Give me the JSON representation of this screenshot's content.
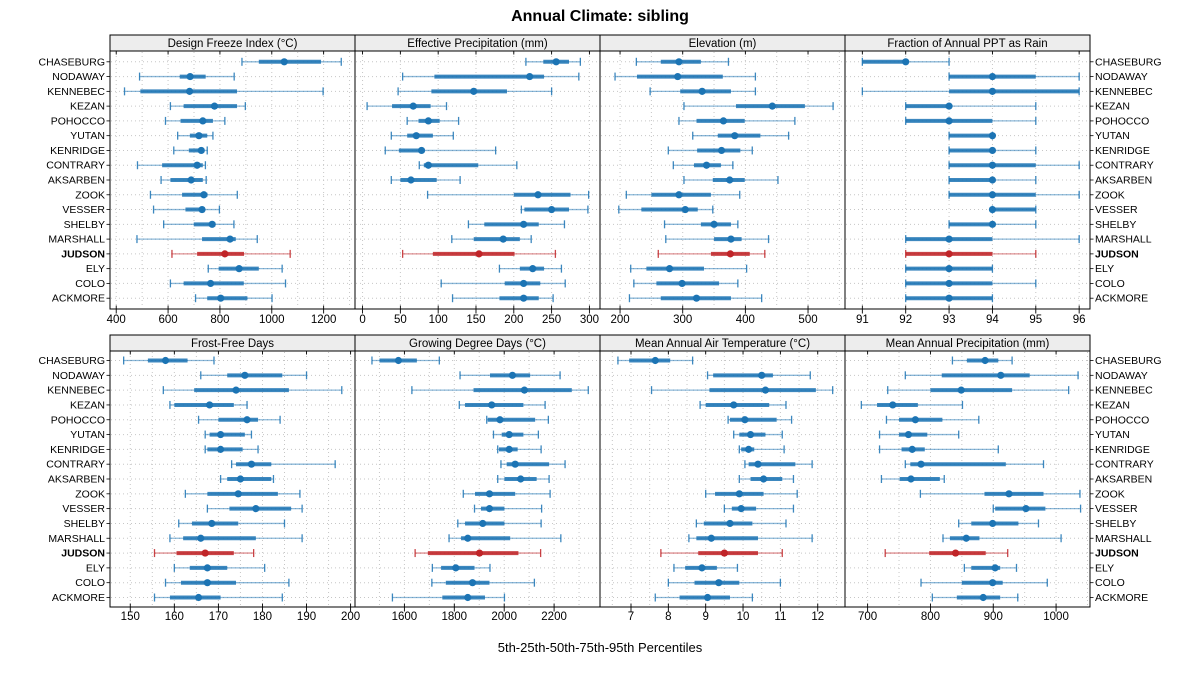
{
  "header": {
    "title": "Annual Climate: sibling"
  },
  "footer": {
    "caption": "5th-25th-50th-75th-95th Percentiles"
  },
  "colors": {
    "series": "#1c74b4",
    "highlight": "#c02428",
    "grid": "#c6c6c6",
    "strip_bg": "#ededed",
    "border": "#000000",
    "background": "#ffffff"
  },
  "chart_data": {
    "type": "scatter",
    "subtype": "trellis-percentile-dotplot",
    "title": "Annual Climate: sibling",
    "xlabel": "5th-25th-50th-75th-95th Percentiles",
    "percentiles": [
      "5th",
      "25th",
      "50th",
      "75th",
      "95th"
    ],
    "legend_position": "none",
    "grid": "dotted",
    "highlight_station": "JUDSON",
    "stations": [
      "CHASEBURG",
      "NODAWAY",
      "KENNEBEC",
      "KEZAN",
      "POHOCCO",
      "YUTAN",
      "KENRIDGE",
      "CONTRARY",
      "AKSARBEN",
      "ZOOK",
      "VESSER",
      "SHELBY",
      "MARSHALL",
      "JUDSON",
      "ELY",
      "COLO",
      "ACKMORE"
    ],
    "panels": [
      {
        "title": "Design Freeze Index (°C)",
        "row": 0,
        "xlim": [
          376,
          1321
        ],
        "ticks": [
          400,
          600,
          800,
          1000,
          1200
        ],
        "minor_step": 100,
        "values": [
          [
            885,
            950,
            1048,
            1190,
            1268
          ],
          [
            490,
            645,
            685,
            745,
            855
          ],
          [
            432,
            493,
            683,
            866,
            1198
          ],
          [
            609,
            660,
            779,
            866,
            898
          ],
          [
            590,
            648,
            734,
            773,
            819
          ],
          [
            637,
            684,
            719,
            751,
            773
          ],
          [
            622,
            680,
            728,
            740,
            751
          ],
          [
            482,
            577,
            712,
            734,
            744
          ],
          [
            573,
            609,
            689,
            734,
            747
          ],
          [
            532,
            654,
            738,
            752,
            867
          ],
          [
            544,
            667,
            731,
            742,
            798
          ],
          [
            583,
            699,
            770,
            783,
            854
          ],
          [
            480,
            731,
            839,
            861,
            944
          ],
          [
            615,
            712,
            819,
            893,
            1071
          ],
          [
            755,
            795,
            874,
            950,
            1040
          ],
          [
            609,
            660,
            764,
            892,
            1053
          ],
          [
            706,
            751,
            803,
            906,
            1001
          ]
        ]
      },
      {
        "title": "Effective Precipitation (mm)",
        "row": 0,
        "xlim": [
          -10,
          314
        ],
        "ticks": [
          0,
          50,
          100,
          150,
          200,
          250,
          300
        ],
        "minor_step": 50,
        "values": [
          [
            216,
            239,
            256,
            273,
            288
          ],
          [
            53,
            95,
            221,
            240,
            286
          ],
          [
            47,
            91,
            147,
            191,
            250
          ],
          [
            6,
            39,
            67,
            90,
            111
          ],
          [
            59,
            74,
            87,
            102,
            127
          ],
          [
            38,
            59,
            71,
            93,
            120
          ],
          [
            30,
            48,
            78,
            82,
            176
          ],
          [
            75,
            81,
            87,
            153,
            204
          ],
          [
            38,
            50,
            64,
            98,
            129
          ],
          [
            86,
            200,
            232,
            275,
            299
          ],
          [
            210,
            214,
            250,
            273,
            298
          ],
          [
            140,
            161,
            213,
            233,
            267
          ],
          [
            118,
            147,
            186,
            208,
            223
          ],
          [
            53,
            93,
            154,
            201,
            255
          ],
          [
            181,
            208,
            225,
            240,
            263
          ],
          [
            104,
            188,
            213,
            235,
            268
          ],
          [
            119,
            181,
            213,
            233,
            252
          ]
        ]
      },
      {
        "title": "Elevation (m)",
        "row": 0,
        "xlim": [
          168,
          559
        ],
        "ticks": [
          200,
          300,
          400,
          500
        ],
        "minor_step": 50,
        "values": [
          [
            226,
            265,
            294,
            329,
            373
          ],
          [
            192,
            227,
            292,
            364,
            416
          ],
          [
            248,
            296,
            331,
            377,
            416
          ],
          [
            302,
            385,
            443,
            495,
            540
          ],
          [
            294,
            322,
            365,
            399,
            479
          ],
          [
            316,
            356,
            383,
            424,
            469
          ],
          [
            277,
            323,
            362,
            392,
            411
          ],
          [
            285,
            318,
            338,
            361,
            380
          ],
          [
            302,
            348,
            375,
            399,
            452
          ],
          [
            210,
            250,
            294,
            345,
            391
          ],
          [
            198,
            234,
            304,
            324,
            348
          ],
          [
            271,
            329,
            350,
            377,
            388
          ],
          [
            273,
            350,
            377,
            394,
            437
          ],
          [
            261,
            345,
            376,
            407,
            431
          ],
          [
            217,
            242,
            279,
            334,
            402
          ],
          [
            222,
            258,
            299,
            358,
            388
          ],
          [
            215,
            265,
            322,
            377,
            426
          ]
        ]
      },
      {
        "title": "Fraction of Annual PPT as Rain",
        "row": 0,
        "xlim": [
          90.6,
          96.25
        ],
        "ticks": [
          91,
          92,
          93,
          94,
          95,
          96
        ],
        "minor_step": 1,
        "values": [
          [
            91,
            91,
            92,
            92,
            93
          ],
          [
            93,
            93,
            94,
            95,
            96
          ],
          [
            91,
            93,
            94,
            96,
            96
          ],
          [
            92,
            92,
            93,
            93,
            95
          ],
          [
            92,
            92,
            93,
            94,
            95
          ],
          [
            93,
            93,
            94,
            94,
            94
          ],
          [
            93,
            93,
            94,
            94,
            95
          ],
          [
            93,
            93,
            94,
            95,
            96
          ],
          [
            93,
            93,
            94,
            94,
            95
          ],
          [
            93,
            93,
            94,
            95,
            96
          ],
          [
            94,
            94,
            94,
            95,
            95
          ],
          [
            93,
            93,
            94,
            94,
            95
          ],
          [
            92,
            92,
            93,
            94,
            96
          ],
          [
            92,
            92,
            93,
            94,
            95
          ],
          [
            92,
            92,
            93,
            94,
            94
          ],
          [
            92,
            92,
            93,
            94,
            95
          ],
          [
            92,
            92,
            93,
            94,
            94
          ]
        ]
      },
      {
        "title": "Frost-Free Days",
        "row": 1,
        "xlim": [
          145.4,
          201
        ],
        "ticks": [
          150,
          160,
          170,
          180,
          190,
          200
        ],
        "minor_step": 5,
        "values": [
          [
            148.5,
            154,
            158,
            163,
            169
          ],
          [
            166,
            172,
            176,
            184.5,
            190
          ],
          [
            157.5,
            164.5,
            174,
            186,
            198
          ],
          [
            159,
            160,
            168,
            173.5,
            176.5
          ],
          [
            165.5,
            170,
            176.5,
            179,
            184
          ],
          [
            167,
            168,
            170.5,
            176,
            177.5
          ],
          [
            167,
            167.5,
            170.5,
            175.5,
            179
          ],
          [
            173,
            174,
            177.5,
            182,
            196.5
          ],
          [
            170.5,
            172,
            175,
            182,
            182.5
          ],
          [
            162.5,
            167.5,
            174.5,
            183.5,
            188.5
          ],
          [
            167.5,
            172.5,
            178.5,
            186.5,
            189
          ],
          [
            161,
            164,
            168.5,
            174.5,
            185
          ],
          [
            159,
            162,
            166,
            178.5,
            189
          ],
          [
            155.5,
            160.5,
            167,
            173.5,
            178
          ],
          [
            160,
            163.5,
            167.5,
            172,
            180.5
          ],
          [
            158,
            161.5,
            167.5,
            174,
            186
          ],
          [
            155.5,
            159,
            165.5,
            170.5,
            184.5
          ]
        ]
      },
      {
        "title": "Growing Degree Days (°C)",
        "row": 1,
        "xlim": [
          1402,
          2384
        ],
        "ticks": [
          1600,
          1800,
          2000,
          2200
        ],
        "minor_step": 100,
        "values": [
          [
            1470,
            1500,
            1576,
            1650,
            1740
          ],
          [
            1823,
            1943,
            2033,
            2104,
            2224
          ],
          [
            1630,
            1877,
            2081,
            2271,
            2337
          ],
          [
            1820,
            1843,
            1950,
            2077,
            2164
          ],
          [
            1930,
            1934,
            1983,
            2124,
            2177
          ],
          [
            1957,
            1990,
            2020,
            2077,
            2137
          ],
          [
            1974,
            1979,
            2020,
            2054,
            2148
          ],
          [
            1987,
            2010,
            2044,
            2180,
            2244
          ],
          [
            1974,
            2001,
            2066,
            2130,
            2180
          ],
          [
            1836,
            1883,
            1941,
            2044,
            2184
          ],
          [
            1881,
            1907,
            1941,
            2001,
            2150
          ],
          [
            1814,
            1843,
            1914,
            2001,
            2148
          ],
          [
            1779,
            1827,
            1854,
            2024,
            2227
          ],
          [
            1643,
            1694,
            1901,
            2057,
            2146
          ],
          [
            1712,
            1747,
            1806,
            1881,
            1943
          ],
          [
            1710,
            1766,
            1873,
            1941,
            2121
          ],
          [
            1552,
            1752,
            1854,
            1923,
            2001
          ]
        ]
      },
      {
        "title": "Mean Annual Air Temperature (°C)",
        "row": 1,
        "xlim": [
          6.17,
          12.73
        ],
        "ticks": [
          7,
          8,
          9,
          10,
          11,
          12
        ],
        "minor_step": 0.5,
        "values": [
          [
            6.65,
            6.95,
            7.65,
            8.05,
            8.65
          ],
          [
            9.05,
            9.2,
            10.5,
            10.8,
            11.8
          ],
          [
            7.55,
            9.1,
            10.6,
            11.95,
            12.4
          ],
          [
            8.85,
            9.0,
            9.75,
            10.7,
            11.15
          ],
          [
            9.6,
            9.65,
            10.05,
            10.9,
            11.3
          ],
          [
            9.75,
            9.9,
            10.2,
            10.6,
            11.05
          ],
          [
            9.9,
            9.95,
            10.15,
            10.3,
            11.1
          ],
          [
            10.05,
            10.15,
            10.4,
            11.4,
            11.85
          ],
          [
            9.9,
            10.2,
            10.55,
            11.05,
            11.35
          ],
          [
            9.0,
            9.25,
            9.9,
            10.55,
            11.45
          ],
          [
            9.5,
            9.7,
            9.95,
            10.35,
            11.35
          ],
          [
            8.75,
            8.95,
            9.65,
            10.25,
            11.15
          ],
          [
            8.55,
            8.75,
            9.15,
            10.4,
            11.85
          ],
          [
            7.8,
            8.8,
            9.5,
            10.4,
            11.05
          ],
          [
            8.15,
            8.45,
            8.9,
            9.3,
            9.85
          ],
          [
            8.0,
            8.7,
            9.35,
            9.9,
            11.0
          ],
          [
            7.65,
            8.3,
            9.05,
            9.65,
            10.25
          ]
        ]
      },
      {
        "title": "Mean Annual Precipitation (mm)",
        "row": 1,
        "xlim": [
          664,
          1054
        ],
        "ticks": [
          700,
          800,
          900,
          1000
        ],
        "minor_step": 50,
        "values": [
          [
            835,
            858,
            887,
            908,
            930
          ],
          [
            760,
            818,
            912,
            958,
            1035
          ],
          [
            732,
            800,
            849,
            930,
            1020
          ],
          [
            690,
            715,
            740,
            780,
            851
          ],
          [
            730,
            750,
            776,
            819,
            877
          ],
          [
            719,
            750,
            765,
            795,
            845
          ],
          [
            719,
            754,
            771,
            791,
            908
          ],
          [
            760,
            768,
            785,
            920,
            980
          ],
          [
            722,
            751,
            769,
            815,
            822
          ],
          [
            784,
            886,
            925,
            980,
            1038
          ],
          [
            900,
            903,
            952,
            983,
            1039
          ],
          [
            845,
            865,
            899,
            940,
            972
          ],
          [
            820,
            831,
            857,
            878,
            1008
          ],
          [
            728,
            798,
            840,
            888,
            923
          ],
          [
            854,
            865,
            903,
            911,
            937
          ],
          [
            785,
            850,
            899,
            915,
            986
          ],
          [
            803,
            842,
            884,
            911,
            939
          ]
        ]
      }
    ]
  }
}
